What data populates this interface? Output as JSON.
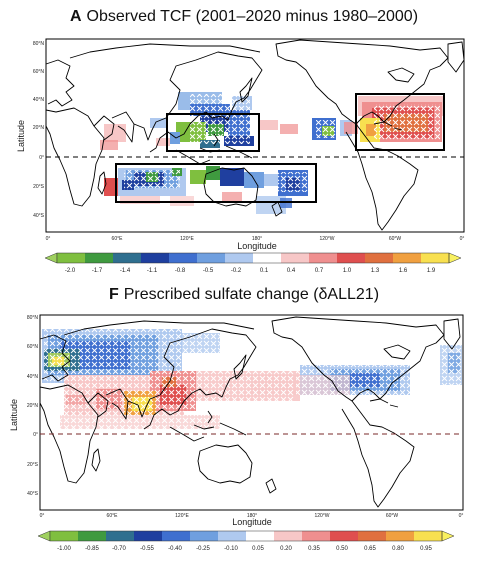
{
  "panel_a": {
    "letter": "A",
    "title": "Observed TCF (2001–2020 minus 1980–2000)",
    "ylabel": "Latitude",
    "xlabel": "Longitude",
    "lat_ticks": [
      "80°N",
      "60°N",
      "40°N",
      "20°N",
      "0°",
      "20°S",
      "40°S"
    ],
    "lon_ticks": [
      "0°",
      "60°E",
      "120°E",
      "180°",
      "120°W",
      "60°W",
      "0°"
    ],
    "colorbar_labels": [
      "-2.0",
      "-1.7",
      "-1.4",
      "-1.1",
      "-0.8",
      "-0.5",
      "-0.2",
      "0.1",
      "0.4",
      "0.7",
      "1.0",
      "1.3",
      "1.6",
      "1.9"
    ]
  },
  "panel_f": {
    "letter": "F",
    "title": "Prescribed sulfate change (δALL21)",
    "ylabel": "Latitude",
    "xlabel": "Longitude",
    "lat_ticks": [
      "80°N",
      "60°N",
      "40°N",
      "20°N",
      "0°",
      "20°S",
      "40°S"
    ],
    "lon_ticks": [
      "0°",
      "60°E",
      "120°E",
      "180°",
      "120°W",
      "60°W",
      "0°"
    ],
    "colorbar_labels": [
      "-1.00",
      "-0.85",
      "-0.70",
      "-0.55",
      "-0.40",
      "-0.25",
      "-0.10",
      "0.05",
      "0.20",
      "0.35",
      "0.50",
      "0.65",
      "0.80",
      "0.95"
    ]
  },
  "colors": {
    "scale": [
      "#7fbf3f",
      "#3f9a3f",
      "#2f6f8f",
      "#1f3f9f",
      "#3f6fcf",
      "#6f9fdf",
      "#afc9ef",
      "#ffffff",
      "#f7c7c7",
      "#ef8f8f",
      "#df4f4f",
      "#e0703f",
      "#f0a040",
      "#f8e050"
    ],
    "box": "#000000"
  }
}
